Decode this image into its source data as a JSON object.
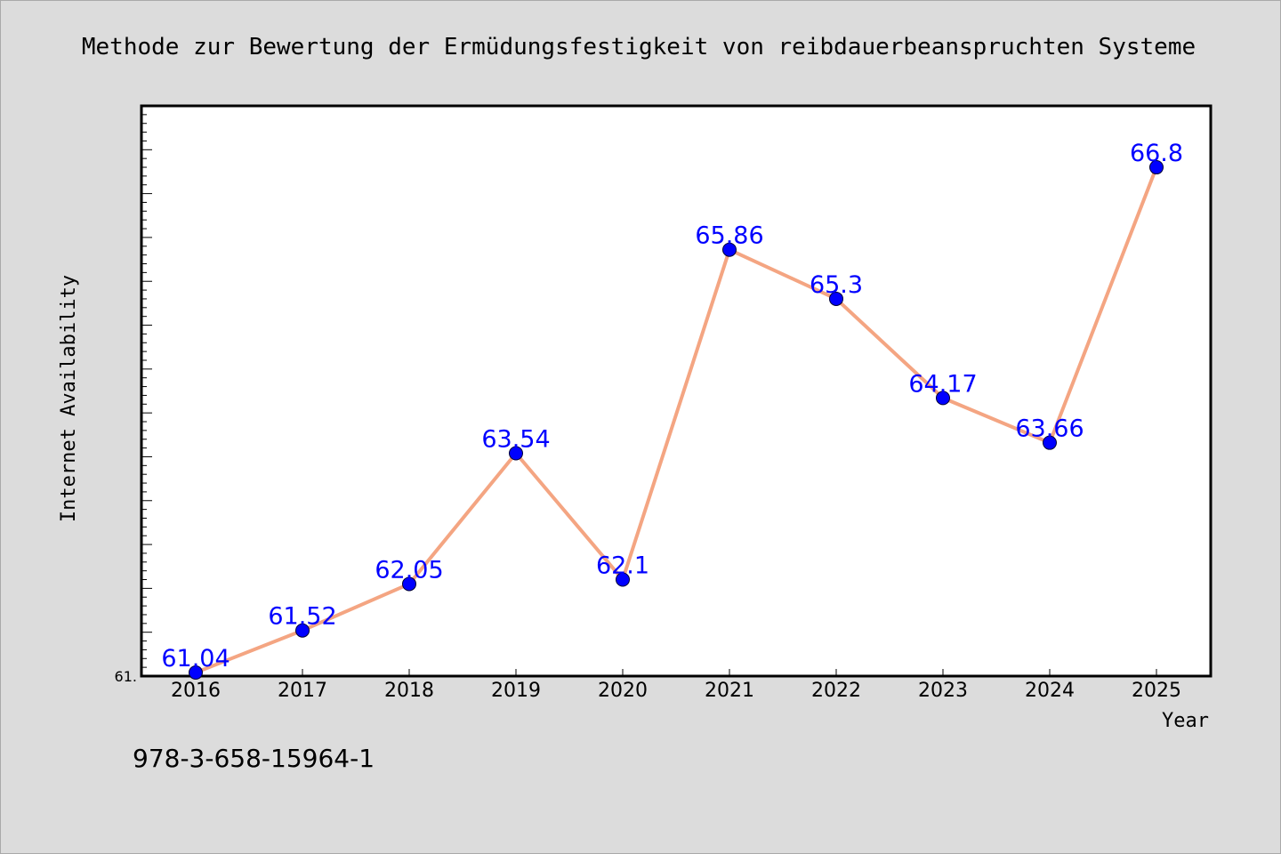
{
  "chart_data": {
    "type": "line",
    "title": "Methode zur Bewertung der Ermüdungsfestigkeit von reibdauerbeanspruchten Systeme",
    "xlabel": "Year",
    "ylabel": "Internet Availability",
    "categories": [
      "2016",
      "2017",
      "2018",
      "2019",
      "2020",
      "2021",
      "2022",
      "2023",
      "2024",
      "2025"
    ],
    "values": [
      61.04,
      61.52,
      62.05,
      63.54,
      62.1,
      65.86,
      65.3,
      64.17,
      63.66,
      66.8
    ],
    "data_labels": [
      "61.04",
      "61.52",
      "62.05",
      "63.54",
      "62.1",
      "65.86",
      "65.3",
      "64.17",
      "63.66",
      "66.8"
    ],
    "ylim": [
      61.0,
      67.5
    ],
    "y_tick_label": "61.",
    "line_color": "#f4a582",
    "marker_color": "#0000ff",
    "label_color": "#0000ff",
    "grid": false,
    "legend": false
  },
  "footer": {
    "isbn": "978-3-658-15964-1"
  }
}
